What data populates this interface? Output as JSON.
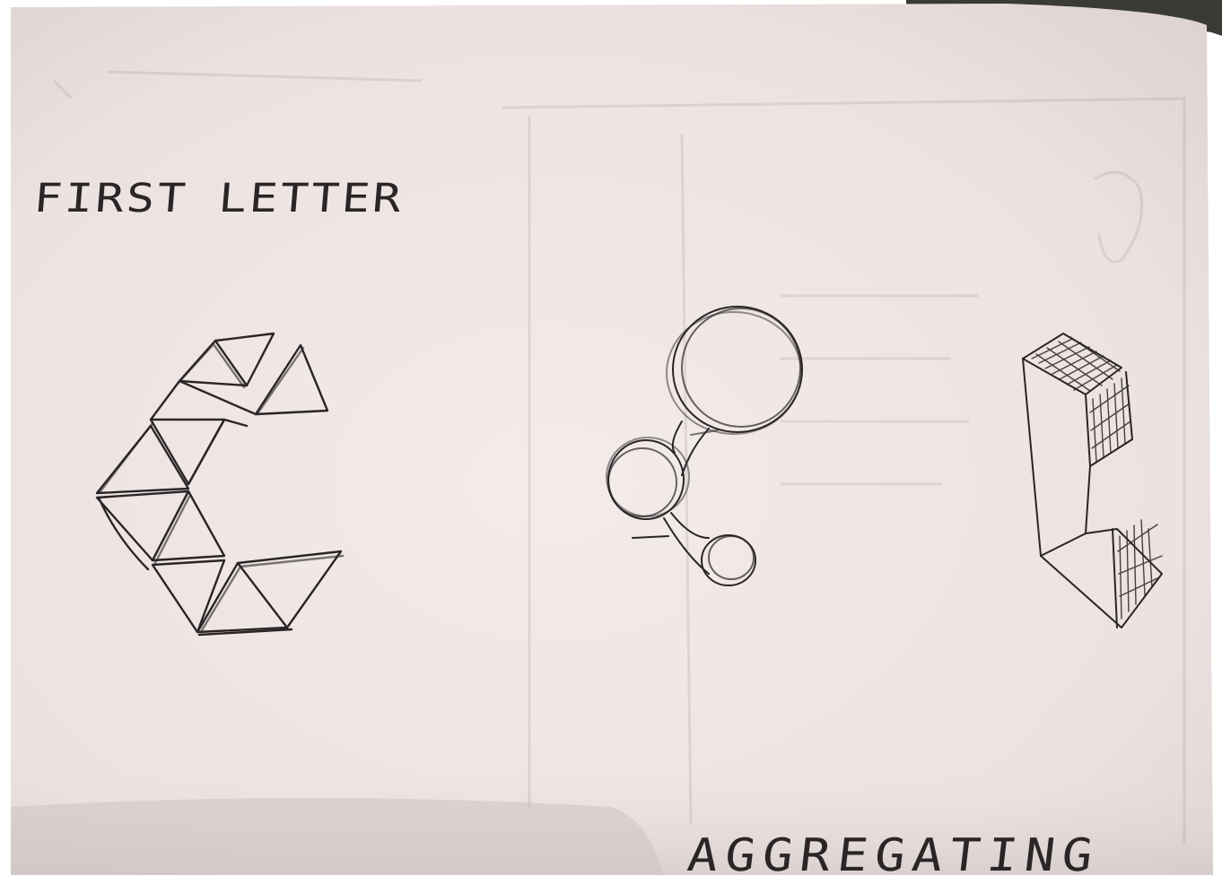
{
  "sketch": {
    "heading": "FIRST LETTER",
    "footer": "AGGREGATING",
    "colors": {
      "paper": "#efe5e4",
      "paper_shadow": "#cfc6c5",
      "pencil": "#2a2527",
      "background": "#ffffff",
      "dark_corner": "#3a3a36"
    },
    "drawings": [
      {
        "name": "triangle-letter-c",
        "style": "triangles"
      },
      {
        "name": "circles-letter-c",
        "style": "connected circles"
      },
      {
        "name": "block-letter-c",
        "style": "3d block with hatched faces"
      }
    ]
  }
}
